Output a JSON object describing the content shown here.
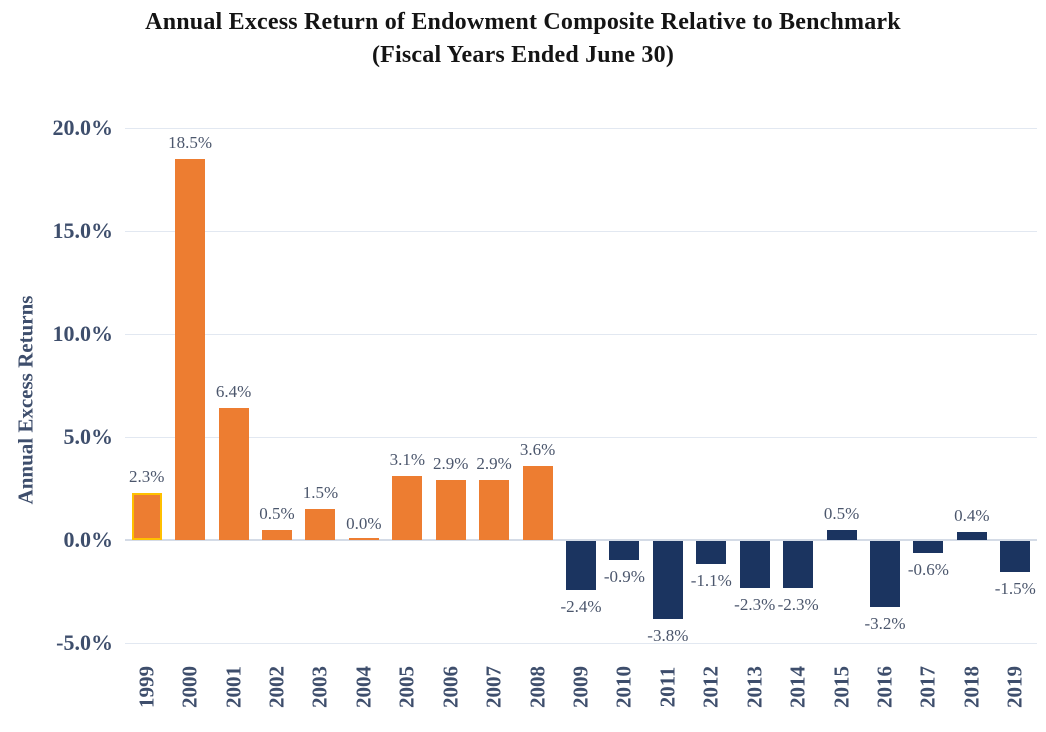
{
  "title": {
    "line1": "Annual Excess Return of Endowment Composite Relative to Benchmark",
    "line2": "(Fiscal Years Ended June 30)"
  },
  "chart_data": {
    "type": "bar",
    "title": "Annual Excess Return of Endowment Composite Relative to Benchmark",
    "subtitle": "(Fiscal Years Ended June 30)",
    "xlabel": "",
    "ylabel": "Annual Excess Returns",
    "ylim": [
      -5,
      20
    ],
    "ytick_values": [
      20,
      15,
      10,
      5,
      0,
      -5
    ],
    "ytick_labels": [
      "20.0%",
      "15.0%",
      "10.0%",
      "5.0%",
      "0.0%",
      "-5.0%"
    ],
    "grid": true,
    "legend_position": "none",
    "categories": [
      "1999",
      "2000",
      "2001",
      "2002",
      "2003",
      "2004",
      "2005",
      "2006",
      "2007",
      "2008",
      "2009",
      "2010",
      "2011",
      "2012",
      "2013",
      "2014",
      "2015",
      "2016",
      "2017",
      "2018",
      "2019"
    ],
    "values": [
      2.3,
      18.5,
      6.4,
      0.5,
      1.5,
      0.0,
      3.1,
      2.9,
      2.9,
      3.6,
      -2.4,
      -0.9,
      -3.8,
      -1.1,
      -2.3,
      -2.3,
      0.5,
      -3.2,
      -0.6,
      0.4,
      -1.5
    ],
    "labels": [
      "2.3%",
      "18.5%",
      "6.4%",
      "0.5%",
      "1.5%",
      "0.0%",
      "3.1%",
      "2.9%",
      "2.9%",
      "3.6%",
      "-2.4%",
      "-0.9%",
      "-3.8%",
      "-1.1%",
      "-2.3%",
      "-2.3%",
      "0.5%",
      "-3.2%",
      "-0.6%",
      "0.4%",
      "-1.5%"
    ],
    "bar_colors": [
      "#ED7D31",
      "#ED7D31",
      "#ED7D31",
      "#ED7D31",
      "#ED7D31",
      "#ED7D31",
      "#ED7D31",
      "#ED7D31",
      "#ED7D31",
      "#ED7D31",
      "#1B3460",
      "#1B3460",
      "#1B3460",
      "#1B3460",
      "#1B3460",
      "#1B3460",
      "#1B3460",
      "#1B3460",
      "#1B3460",
      "#1B3460",
      "#1B3460"
    ],
    "highlight": {
      "category": "1999",
      "outline_color": "#FFC000"
    }
  },
  "colors": {
    "orange": "#ED7D31",
    "navy": "#1B3460",
    "highlight_outline": "#FFC000",
    "gridline": "#E2E8F1",
    "zero_line": "#D4DBE6",
    "axis_text": "#3E4E6C",
    "data_label_text": "#4B566C",
    "title_text": "#141414"
  }
}
